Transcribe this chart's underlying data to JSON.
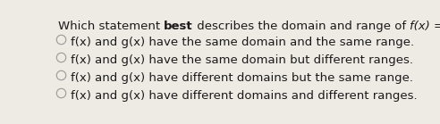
{
  "background_color": "#eeebe5",
  "text_color": "#1a1a1a",
  "circle_color": "#999999",
  "font_size_question": 9.5,
  "font_size_options": 9.5,
  "options": [
    "f(x) and g(x) have the same domain and the same range.",
    "f(x) and g(x) have the same domain but different ranges.",
    "f(x) and g(x) have different domains but the same range.",
    "f(x) and g(x) have different domains and different ranges."
  ]
}
